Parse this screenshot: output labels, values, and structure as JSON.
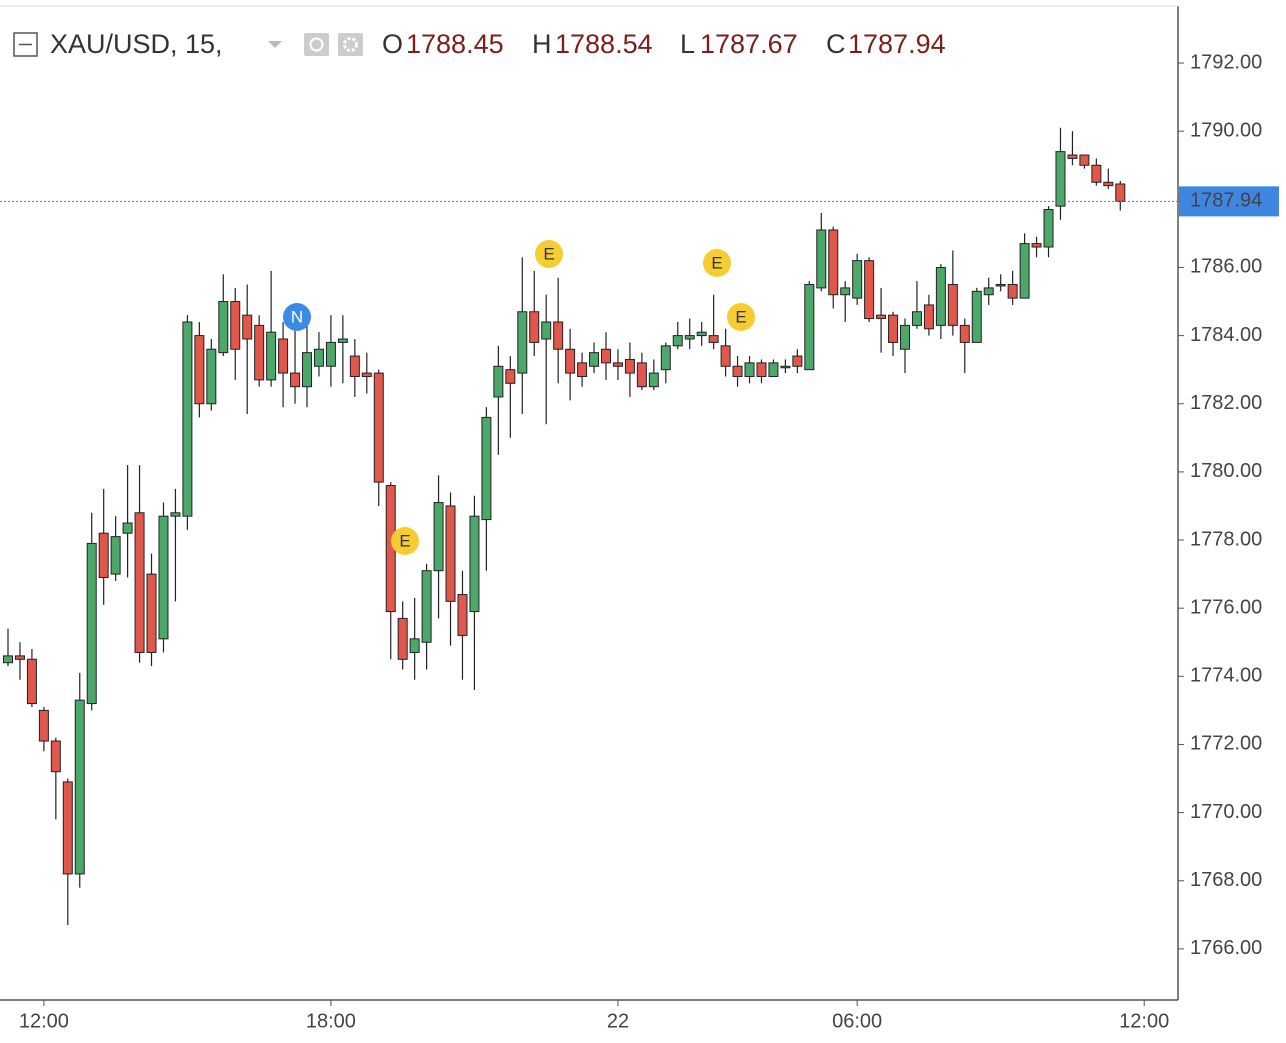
{
  "header": {
    "title": "XAU/USD, 15,",
    "o_label": "O",
    "h_label": "H",
    "l_label": "L",
    "c_label": "C"
  },
  "chart_data": {
    "type": "candlestick",
    "categories": [
      null,
      null,
      null,
      "12:00",
      null,
      null,
      null,
      null,
      null,
      null,
      null,
      null,
      null,
      null,
      null,
      null,
      null,
      null,
      null,
      null,
      null,
      null,
      null,
      null,
      null,
      null,
      null,
      "18:00",
      null,
      null,
      null,
      null,
      null,
      null,
      null,
      null,
      null,
      null,
      null,
      null,
      null,
      null,
      null,
      null,
      null,
      null,
      null,
      null,
      null,
      null,
      null,
      "22",
      null,
      null,
      null,
      null,
      null,
      null,
      null,
      null,
      null,
      null,
      null,
      null,
      null,
      null,
      null,
      null,
      null,
      null,
      null,
      "06:00",
      null,
      null,
      null,
      null,
      null,
      null,
      null,
      null,
      null,
      null,
      null,
      null,
      null,
      null,
      null,
      null,
      null,
      null,
      null,
      null,
      null,
      null,
      null,
      "12:00"
    ],
    "open": [
      1774.4,
      1774.6,
      1774.5,
      1773.0,
      1772.1,
      1770.9,
      1768.2,
      1773.2,
      1778.2,
      1777.0,
      1778.2,
      1778.8,
      1777.0,
      1775.1,
      1778.7,
      1778.7,
      1784.0,
      1782.0,
      1783.5,
      1785.0,
      1784.6,
      1784.3,
      1782.7,
      1783.9,
      1782.9,
      1782.5,
      1783.1,
      1783.1,
      1783.8,
      1783.4,
      1782.9,
      1782.9,
      1779.6,
      1775.7,
      1774.7,
      1775.0,
      1777.1,
      1779.0,
      1776.4,
      1775.9,
      1778.6,
      1782.2,
      1783.0,
      1782.9,
      1784.7,
      1783.9,
      1784.4,
      1783.6,
      1783.2,
      1783.1,
      1783.6,
      1783.2,
      1783.3,
      1783.2,
      1782.5,
      1783.0,
      1783.7,
      1783.9,
      1784.0,
      1784.0,
      1783.7,
      1783.1,
      1782.8,
      1783.2,
      1782.8,
      1783.1,
      1783.4,
      1783.0,
      1785.4,
      1787.1,
      1785.2,
      1785.1,
      1786.2,
      1784.6,
      1784.6,
      1783.6,
      1784.3,
      1784.9,
      1784.3,
      1785.5,
      1784.3,
      1783.8,
      1785.2,
      1785.5,
      1785.5,
      1785.1,
      1786.7,
      1786.6,
      1787.8,
      1789.3,
      1789.3,
      1789.0,
      1788.5,
      1788.45,
      null,
      null
    ],
    "high": [
      1775.4,
      1775.0,
      1774.8,
      1773.1,
      1772.2,
      1771.0,
      1774.1,
      1778.8,
      1779.5,
      1778.7,
      1780.2,
      1780.2,
      1777.6,
      1779.1,
      1779.5,
      1784.6,
      1784.4,
      1783.9,
      1785.8,
      1785.4,
      1785.5,
      1784.6,
      1785.9,
      1784.4,
      1784.4,
      1784.3,
      1784.1,
      1784.6,
      1784.6,
      1783.9,
      1783.5,
      1783.0,
      1779.7,
      1776.2,
      1776.3,
      1777.3,
      1779.9,
      1779.4,
      1777.1,
      1779.3,
      1781.9,
      1783.7,
      1783.4,
      1786.3,
      1785.9,
      1785.2,
      1785.7,
      1784.2,
      1783.5,
      1783.8,
      1784.1,
      1783.6,
      1783.8,
      1783.5,
      1783.3,
      1783.8,
      1784.4,
      1784.5,
      1784.4,
      1785.2,
      1784.2,
      1783.4,
      1783.4,
      1783.3,
      1783.3,
      1783.3,
      1783.6,
      1785.6,
      1787.6,
      1787.2,
      1785.6,
      1786.4,
      1786.3,
      1785.4,
      1784.7,
      1784.5,
      1785.6,
      1785.2,
      1786.1,
      1786.5,
      1784.5,
      1785.4,
      1785.7,
      1785.8,
      1785.9,
      1787.0,
      1786.9,
      1787.8,
      1790.1,
      1790.0,
      1789.3,
      1789.2,
      1788.9,
      1788.54,
      null,
      null
    ],
    "low": [
      1774.3,
      1773.9,
      1773.1,
      1771.8,
      1769.8,
      1766.7,
      1767.8,
      1773.0,
      1776.1,
      1776.8,
      1776.9,
      1774.4,
      1774.3,
      1774.7,
      1776.2,
      1778.3,
      1781.6,
      1781.8,
      1783.4,
      1782.7,
      1781.7,
      1782.5,
      1782.5,
      1781.9,
      1782.0,
      1781.9,
      1782.8,
      1782.5,
      1782.6,
      1782.2,
      1782.3,
      1779.0,
      1774.5,
      1774.2,
      1773.9,
      1774.2,
      1775.7,
      1774.9,
      1773.9,
      1773.6,
      1777.1,
      1780.5,
      1781.0,
      1781.7,
      1783.4,
      1781.4,
      1782.6,
      1782.1,
      1782.5,
      1782.9,
      1782.7,
      1782.7,
      1782.2,
      1782.4,
      1782.4,
      1782.6,
      1783.6,
      1783.6,
      1783.7,
      1783.6,
      1782.8,
      1782.5,
      1782.6,
      1782.6,
      1782.8,
      1782.9,
      1782.9,
      1783.0,
      1785.3,
      1784.8,
      1784.4,
      1784.9,
      1784.4,
      1783.5,
      1783.4,
      1782.9,
      1784.2,
      1784.0,
      1783.9,
      1784.0,
      1782.9,
      1783.8,
      1784.9,
      1785.3,
      1784.9,
      1785.1,
      1786.3,
      1786.3,
      1787.4,
      1789.0,
      1788.9,
      1788.4,
      1788.3,
      1787.67,
      null,
      null
    ],
    "close": [
      1774.6,
      1774.5,
      1773.2,
      1772.1,
      1771.2,
      1768.2,
      1773.3,
      1777.9,
      1776.9,
      1778.1,
      1778.5,
      1774.7,
      1774.7,
      1778.7,
      1778.8,
      1784.4,
      1782.0,
      1783.6,
      1785.0,
      1783.6,
      1783.9,
      1782.7,
      1784.1,
      1782.9,
      1782.5,
      1783.5,
      1783.6,
      1783.8,
      1783.9,
      1782.8,
      1782.8,
      1779.7,
      1775.9,
      1774.5,
      1775.1,
      1777.1,
      1779.1,
      1776.2,
      1775.2,
      1778.7,
      1781.6,
      1783.1,
      1782.6,
      1784.7,
      1783.8,
      1784.4,
      1783.6,
      1782.9,
      1782.8,
      1783.5,
      1783.2,
      1783.1,
      1782.9,
      1782.5,
      1782.9,
      1783.7,
      1784.0,
      1784.0,
      1784.1,
      1783.8,
      1783.1,
      1782.8,
      1783.2,
      1782.8,
      1783.2,
      1783.1,
      1783.1,
      1785.5,
      1787.1,
      1785.2,
      1785.4,
      1786.2,
      1784.5,
      1784.5,
      1783.8,
      1784.3,
      1784.7,
      1784.2,
      1786.0,
      1784.3,
      1783.8,
      1785.3,
      1785.4,
      1785.5,
      1785.1,
      1786.7,
      1786.6,
      1787.7,
      1789.4,
      1789.2,
      1789.0,
      1788.5,
      1788.4,
      1787.94,
      null,
      null
    ],
    "up_color": "#4ca86a",
    "down_color": "#e0574b",
    "wick_color": "#222222",
    "last_price_color": "#3f86e0",
    "ylim": [
      1764.5,
      1793.85
    ],
    "yticks": [
      {
        "value": 1766,
        "label": "1766.00"
      },
      {
        "value": 1768,
        "label": "1768.00"
      },
      {
        "value": 1770,
        "label": "1770.00"
      },
      {
        "value": 1772,
        "label": "1772.00"
      },
      {
        "value": 1774,
        "label": "1774.00"
      },
      {
        "value": 1776,
        "label": "1776.00"
      },
      {
        "value": 1778,
        "label": "1778.00"
      },
      {
        "value": 1780,
        "label": "1780.00"
      },
      {
        "value": 1782,
        "label": "1782.00"
      },
      {
        "value": 1784,
        "label": "1784.00"
      },
      {
        "value": 1786,
        "label": "1786.00"
      },
      {
        "value": 1788,
        "label": "1788.00"
      },
      {
        "value": 1790,
        "label": "1790.00"
      },
      {
        "value": 1792,
        "label": "1792.00"
      }
    ],
    "markers": [
      "N",
      "E",
      "E",
      "E",
      "E"
    ]
  }
}
